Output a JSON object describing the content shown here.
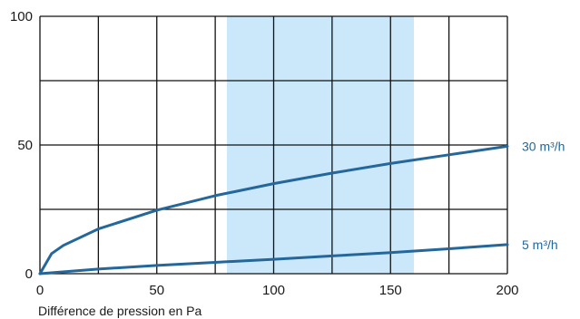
{
  "chart_data": {
    "type": "line",
    "title": "",
    "xlabel": "Différence de pression en Pa",
    "ylabel": "",
    "xlim": [
      0,
      200
    ],
    "ylim": [
      0,
      100
    ],
    "x_ticks": [
      "0",
      "50",
      "100",
      "150",
      "200"
    ],
    "y_ticks": [
      "0",
      "50",
      "100"
    ],
    "grid": true,
    "highlight_band": {
      "x_range": [
        80,
        160
      ],
      "color": "#cbe8fb"
    },
    "line_color": "#25679a",
    "series": [
      {
        "name": "30 m³/h",
        "x": [
          0,
          5,
          10,
          25,
          50,
          75,
          100,
          125,
          150,
          175,
          200
        ],
        "y": [
          0,
          7.8,
          11,
          17.4,
          24.7,
          30.3,
          35,
          39.1,
          42.8,
          46.2,
          49.5
        ]
      },
      {
        "name": "5 m³/h",
        "x": [
          0,
          25,
          50,
          75,
          100,
          125,
          150,
          175,
          200
        ],
        "y": [
          0,
          1.8,
          3.2,
          4.4,
          5.6,
          6.9,
          8.2,
          9.7,
          11.3
        ]
      }
    ]
  }
}
